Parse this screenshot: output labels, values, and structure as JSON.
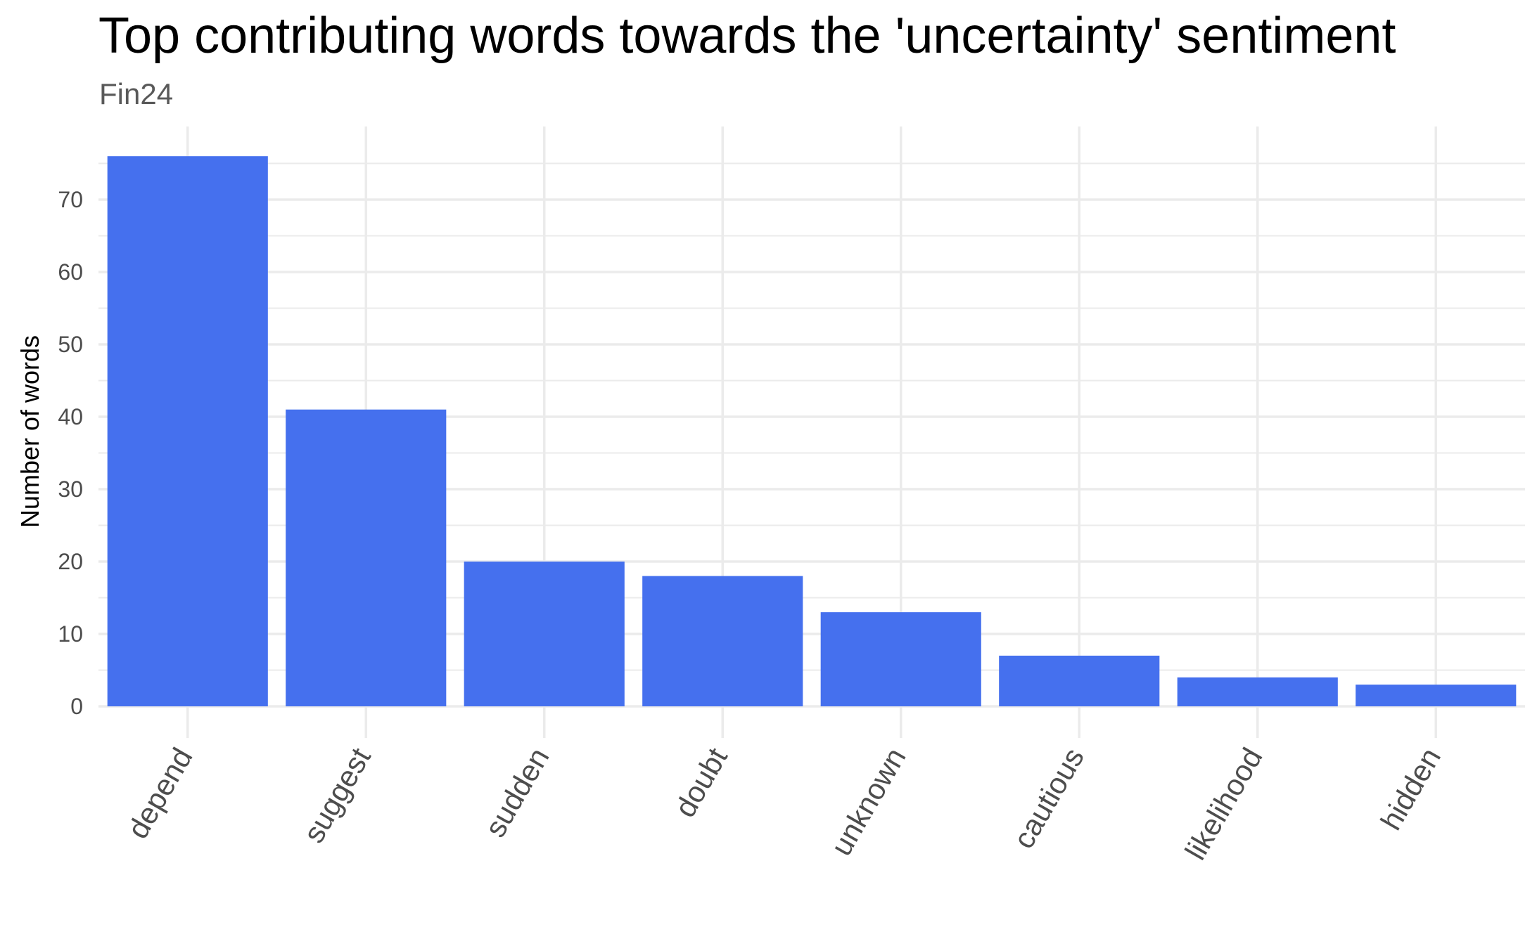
{
  "chart_data": {
    "type": "bar",
    "title": "Top contributing words towards the 'uncertainty' sentiment",
    "subtitle": "Fin24",
    "xlabel": "",
    "ylabel": "Number of words",
    "categories": [
      "depend",
      "suggest",
      "sudden",
      "doubt",
      "unknown",
      "cautious",
      "likelihood",
      "hidden"
    ],
    "values": [
      76,
      41,
      20,
      18,
      13,
      7,
      4,
      3
    ],
    "ylim": [
      0,
      80
    ],
    "yticks": [
      0,
      10,
      20,
      30,
      40,
      50,
      60,
      70
    ],
    "grid": true,
    "legend": "none",
    "colors": {
      "bar": "#4570ee",
      "grid": "#ebebeb",
      "background": "#ffffff"
    }
  }
}
